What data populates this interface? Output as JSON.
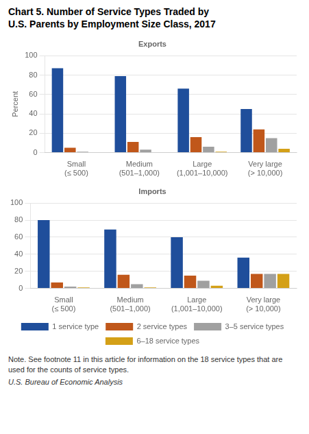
{
  "title": "Chart 5. Number of Service Types Traded by\nU.S. Parents by Employment Size Class, 2017",
  "annotations": [
    "Note. See footnote 11 in this article for information on the 18 service types that are used for the counts of service types.",
    "U.S. Bureau of Economic Analysis"
  ],
  "chart_data": [
    {
      "type": "bar",
      "title": "Exports",
      "y_label": "Percent",
      "categories": [
        "Small\n(≤ 500)",
        "Medium\n(501–1,000)",
        "Large\n(1,001–10,000)",
        "Very large\n(> 10,000)"
      ],
      "series": [
        {
          "name": "1 service type",
          "color": "#1f4e9b",
          "values": [
            87,
            79,
            66,
            45
          ]
        },
        {
          "name": "2 service types",
          "color": "#c0571a",
          "values": [
            5,
            11,
            16,
            24
          ]
        },
        {
          "name": "3–5 service types",
          "color": "#a0a0a0",
          "values": [
            1,
            3,
            6,
            15
          ]
        },
        {
          "name": "6–18 service types",
          "color": "#d4a017",
          "values": [
            0,
            0,
            1,
            4
          ]
        }
      ],
      "ylim": [
        0,
        100
      ],
      "yticks": [
        0,
        20,
        40,
        60,
        80,
        100
      ],
      "grid": true
    },
    {
      "type": "bar",
      "title": "Imports",
      "categories": [
        "Small\n(≤ 500)",
        "Medium\n(501–1,000)",
        "Large\n(1,001–10,000)",
        "Very large\n(> 10,000)"
      ],
      "series": [
        {
          "name": "1 service type",
          "color": "#1f4e9b",
          "values": [
            80,
            69,
            60,
            36
          ]
        },
        {
          "name": "2 service types",
          "color": "#c0571a",
          "values": [
            7,
            16,
            15,
            17
          ]
        },
        {
          "name": "3–5 service types",
          "color": "#a0a0a0",
          "values": [
            2,
            5,
            9,
            17
          ]
        },
        {
          "name": "6–18 service types",
          "color": "#d4a017",
          "values": [
            1,
            1,
            3,
            17
          ]
        }
      ],
      "ylim": [
        0,
        100
      ],
      "yticks": [
        0,
        20,
        40,
        60,
        80,
        100
      ],
      "grid": true,
      "legend": "bottom"
    }
  ]
}
